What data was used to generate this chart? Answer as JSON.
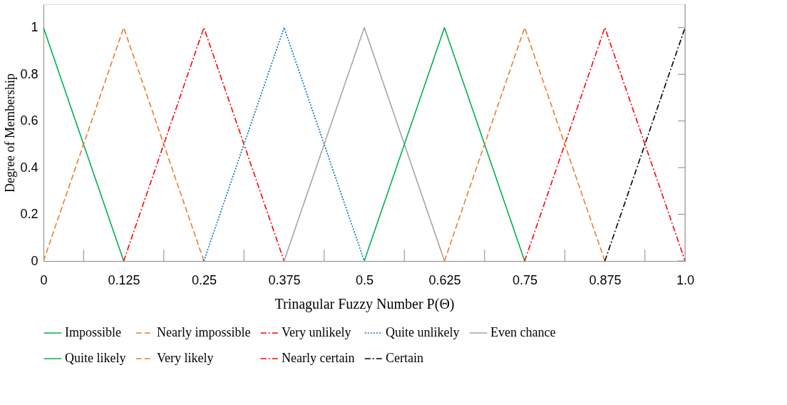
{
  "chart_data": {
    "type": "line",
    "xlabel": "Trinagular Fuzzy Number P(Θ)",
    "ylabel": "Degree of Membership",
    "xlim": [
      0,
      1
    ],
    "ylim": [
      0,
      1.1
    ],
    "xticks": [
      0,
      {
        "value": 0.0625,
        "label": null
      },
      0.125,
      {
        "value": 0.1875,
        "label": null
      },
      0.25,
      {
        "value": 0.3125,
        "label": null
      },
      0.375,
      {
        "value": 0.4375,
        "label": null
      },
      0.5,
      {
        "value": 0.5625,
        "label": null
      },
      0.625,
      {
        "value": 0.6875,
        "label": null
      },
      0.75,
      {
        "value": 0.8125,
        "label": null
      },
      0.875,
      {
        "value": 0.9375,
        "label": null
      },
      {
        "value": 1,
        "label": "1.0"
      }
    ],
    "yticks": [
      0,
      0.2,
      0.4,
      0.6,
      0.8,
      1
    ],
    "grid": false,
    "legend": "bottom",
    "marker": "none",
    "series": [
      {
        "name": "Impossible",
        "color": "#00b050",
        "line_style": "solid",
        "x": [
          0,
          0.125
        ],
        "values": [
          1,
          0
        ]
      },
      {
        "name": "Nearly impossible",
        "color": "#ed7d31",
        "line_style": "dashed",
        "x": [
          0,
          0.125,
          0.25
        ],
        "values": [
          0,
          1,
          0
        ]
      },
      {
        "name": "Very unlikely",
        "color": "#ff0000",
        "line_style": "dashdot",
        "x": [
          0.125,
          0.25,
          0.375
        ],
        "values": [
          0,
          1,
          0
        ]
      },
      {
        "name": "Quite unlikely",
        "color": "#0070c0",
        "line_style": "dotted",
        "x": [
          0.25,
          0.375,
          0.5
        ],
        "values": [
          0,
          1,
          0
        ]
      },
      {
        "name": "Even chance",
        "color": "#a5a5a5",
        "line_style": "solid",
        "x": [
          0.375,
          0.5,
          0.625
        ],
        "values": [
          0,
          1,
          0
        ]
      },
      {
        "name": "Quite likely",
        "color": "#00b050",
        "line_style": "solid",
        "x": [
          0.5,
          0.625,
          0.75
        ],
        "values": [
          0,
          1,
          0
        ]
      },
      {
        "name": "Very likely",
        "color": "#ed7d31",
        "line_style": "dashed",
        "x": [
          0.625,
          0.75,
          0.875
        ],
        "values": [
          0,
          1,
          0
        ]
      },
      {
        "name": "Nearly certain",
        "color": "#ff0000",
        "line_style": "dashdot",
        "x": [
          0.75,
          0.875,
          1
        ],
        "values": [
          0,
          1,
          0
        ]
      },
      {
        "name": "Certain",
        "color": "#000000",
        "line_style": "dashdot",
        "x": [
          0.875,
          1
        ],
        "values": [
          0,
          1
        ]
      }
    ]
  }
}
